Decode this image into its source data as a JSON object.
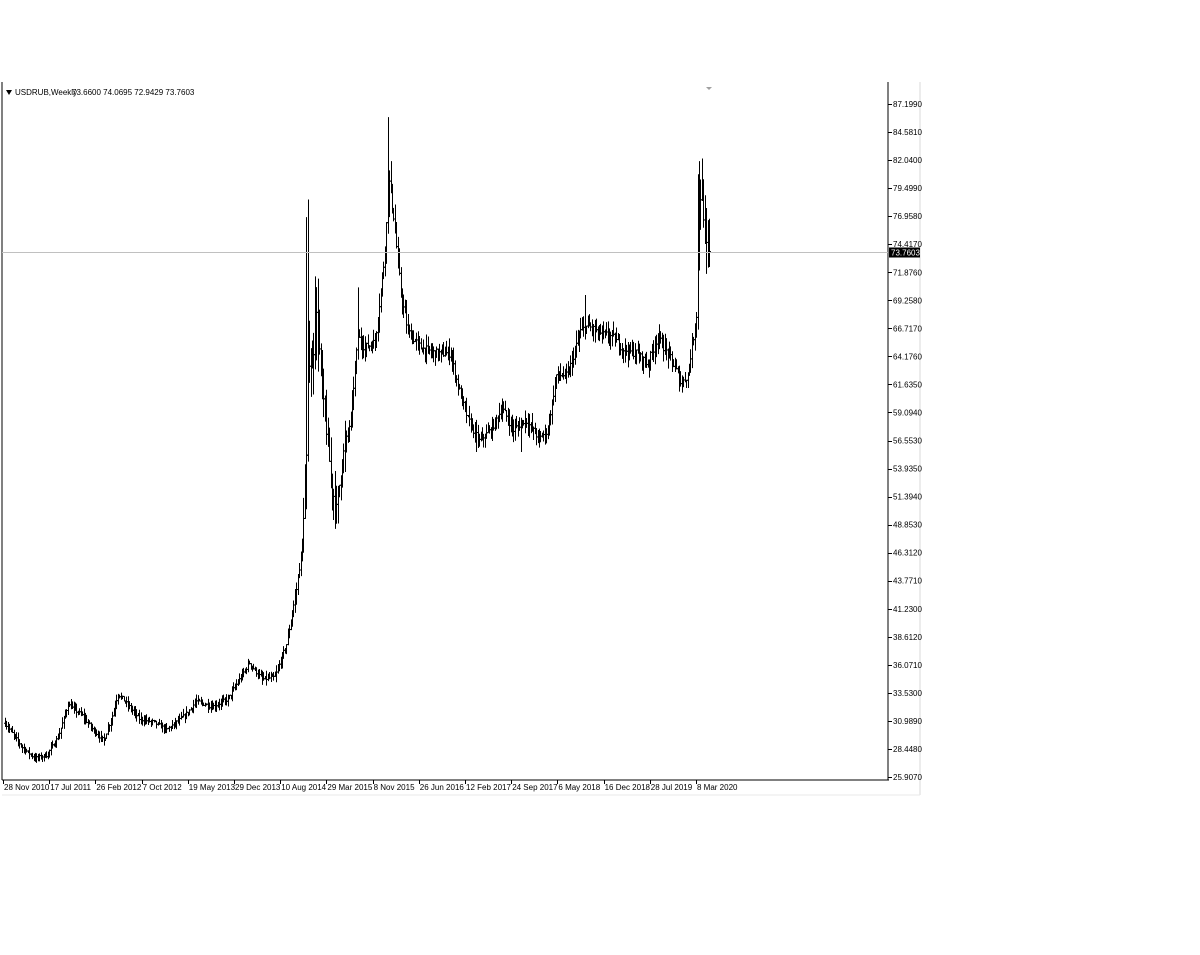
{
  "chart_data": {
    "type": "bar",
    "style": "ohlc-bars",
    "symbol": "USDRUB,Weekly",
    "ohlc_header": "73.6600 74.0695 72.9429 73.7603",
    "current_price": 73.7603,
    "current_price_label": "73.7603",
    "colors": {
      "bars": "#000000",
      "price_line": "#c0c0c0",
      "price_tag_bg": "#000000",
      "price_tag_text": "#ffffff",
      "axis": "#000000"
    },
    "grid": false,
    "y_range": [
      25.907,
      88.4
    ],
    "y_ticks": [
      "87.1990",
      "84.5810",
      "82.0400",
      "79.4990",
      "76.9580",
      "74.4170",
      "71.8760",
      "69.2580",
      "66.7170",
      "64.1760",
      "61.6350",
      "59.0940",
      "56.5530",
      "53.9350",
      "51.3940",
      "48.8530",
      "46.3120",
      "43.7710",
      "41.2300",
      "38.6120",
      "36.0710",
      "33.5300",
      "30.9890",
      "28.4480",
      "25.9070"
    ],
    "x_ticks": [
      "28 Nov 2010",
      "17 Jul 2011",
      "26 Feb 2012",
      "7 Oct 2012",
      "19 May 2013",
      "29 Dec 2013",
      "10 Aug 2014",
      "29 Mar 2015",
      "8 Nov 2015",
      "26 Jun 2016",
      "12 Feb 2017",
      "24 Sep 2017",
      "6 May 2018",
      "16 Dec 2018",
      "28 Jul 2019",
      "8 Mar 2020"
    ],
    "x_start": "2010-11-28",
    "x_end": "2020-05-10",
    "price_path": [
      [
        "2010-11-28",
        30.8
      ],
      [
        "2011-02-20",
        28.6
      ],
      [
        "2011-04-24",
        27.6
      ],
      [
        "2011-06-19",
        27.9
      ],
      [
        "2011-08-14",
        29.5
      ],
      [
        "2011-10-02",
        32.5
      ],
      [
        "2011-12-11",
        31.5
      ],
      [
        "2012-01-29",
        30.3
      ],
      [
        "2012-03-25",
        29.2
      ],
      [
        "2012-05-06",
        31.5
      ],
      [
        "2012-06-03",
        33.5
      ],
      [
        "2012-07-29",
        32.3
      ],
      [
        "2012-09-16",
        31.2
      ],
      [
        "2012-11-25",
        30.9
      ],
      [
        "2013-01-27",
        30.2
      ],
      [
        "2013-04-28",
        31.5
      ],
      [
        "2013-06-23",
        32.8
      ],
      [
        "2013-09-08",
        32.3
      ],
      [
        "2013-11-24",
        33.0
      ],
      [
        "2014-01-26",
        35.0
      ],
      [
        "2014-03-09",
        36.3
      ],
      [
        "2014-05-11",
        34.8
      ],
      [
        "2014-07-13",
        35.0
      ],
      [
        "2014-09-07",
        38.0
      ],
      [
        "2014-10-26",
        43.0
      ],
      [
        "2014-11-23",
        47.0
      ],
      [
        "2014-12-14",
        55.0
      ],
      [
        "2014-12-21",
        64.0
      ],
      [
        "2015-01-11",
        63.0
      ],
      [
        "2015-02-01",
        68.0
      ],
      [
        "2015-03-08",
        60.0
      ],
      [
        "2015-04-19",
        52.0
      ],
      [
        "2015-05-10",
        50.5
      ],
      [
        "2015-06-14",
        55.5
      ],
      [
        "2015-07-19",
        58.5
      ],
      [
        "2015-08-23",
        66.0
      ],
      [
        "2015-09-27",
        65.0
      ],
      [
        "2015-11-15",
        65.5
      ],
      [
        "2015-12-27",
        72.5
      ],
      [
        "2016-01-24",
        80.0
      ],
      [
        "2016-02-14",
        77.0
      ],
      [
        "2016-03-20",
        70.0
      ],
      [
        "2016-04-24",
        66.5
      ],
      [
        "2016-06-26",
        65.0
      ],
      [
        "2016-09-04",
        64.5
      ],
      [
        "2016-11-20",
        64.5
      ],
      [
        "2016-12-25",
        61.5
      ],
      [
        "2017-02-12",
        58.5
      ],
      [
        "2017-04-09",
        56.5
      ],
      [
        "2017-06-04",
        57.5
      ],
      [
        "2017-07-30",
        59.5
      ],
      [
        "2017-09-24",
        57.5
      ],
      [
        "2017-11-19",
        58.5
      ],
      [
        "2018-01-28",
        56.7
      ],
      [
        "2018-03-11",
        57.5
      ],
      [
        "2018-04-22",
        62.5
      ],
      [
        "2018-06-17",
        62.5
      ],
      [
        "2018-08-19",
        66.5
      ],
      [
        "2018-09-23",
        67.0
      ],
      [
        "2018-11-25",
        66.3
      ],
      [
        "2019-01-20",
        66.0
      ],
      [
        "2019-03-24",
        64.8
      ],
      [
        "2019-05-19",
        64.5
      ],
      [
        "2019-07-14",
        63.5
      ],
      [
        "2019-09-01",
        66.0
      ],
      [
        "2019-11-10",
        63.8
      ],
      [
        "2019-12-29",
        61.8
      ],
      [
        "2020-01-26",
        62.5
      ],
      [
        "2020-02-23",
        66.0
      ],
      [
        "2020-03-08",
        68.0
      ],
      [
        "2020-03-22",
        78.0
      ],
      [
        "2020-04-05",
        79.5
      ],
      [
        "2020-04-19",
        74.5
      ],
      [
        "2020-05-10",
        73.7603
      ]
    ],
    "spikes": [
      [
        "2014-12-14",
        76.9
      ],
      [
        "2014-12-21",
        78.5
      ],
      [
        "2015-01-25",
        71.5
      ],
      [
        "2015-08-23",
        70.5
      ],
      [
        "2016-01-17",
        86.0
      ],
      [
        "2016-01-31",
        82.0
      ],
      [
        "2018-04-08",
        61.5
      ],
      [
        "2018-09-09",
        69.8
      ],
      [
        "2019-07-28",
        61.2
      ],
      [
        "2020-03-15",
        80.8
      ],
      [
        "2020-03-22",
        82.0
      ]
    ],
    "dips": [
      [
        "2015-05-03",
        48.5
      ],
      [
        "2015-05-17",
        49.0
      ],
      [
        "2017-03-26",
        55.5
      ],
      [
        "2017-10-29",
        55.5
      ],
      [
        "2019-12-15",
        61.0
      ]
    ]
  }
}
